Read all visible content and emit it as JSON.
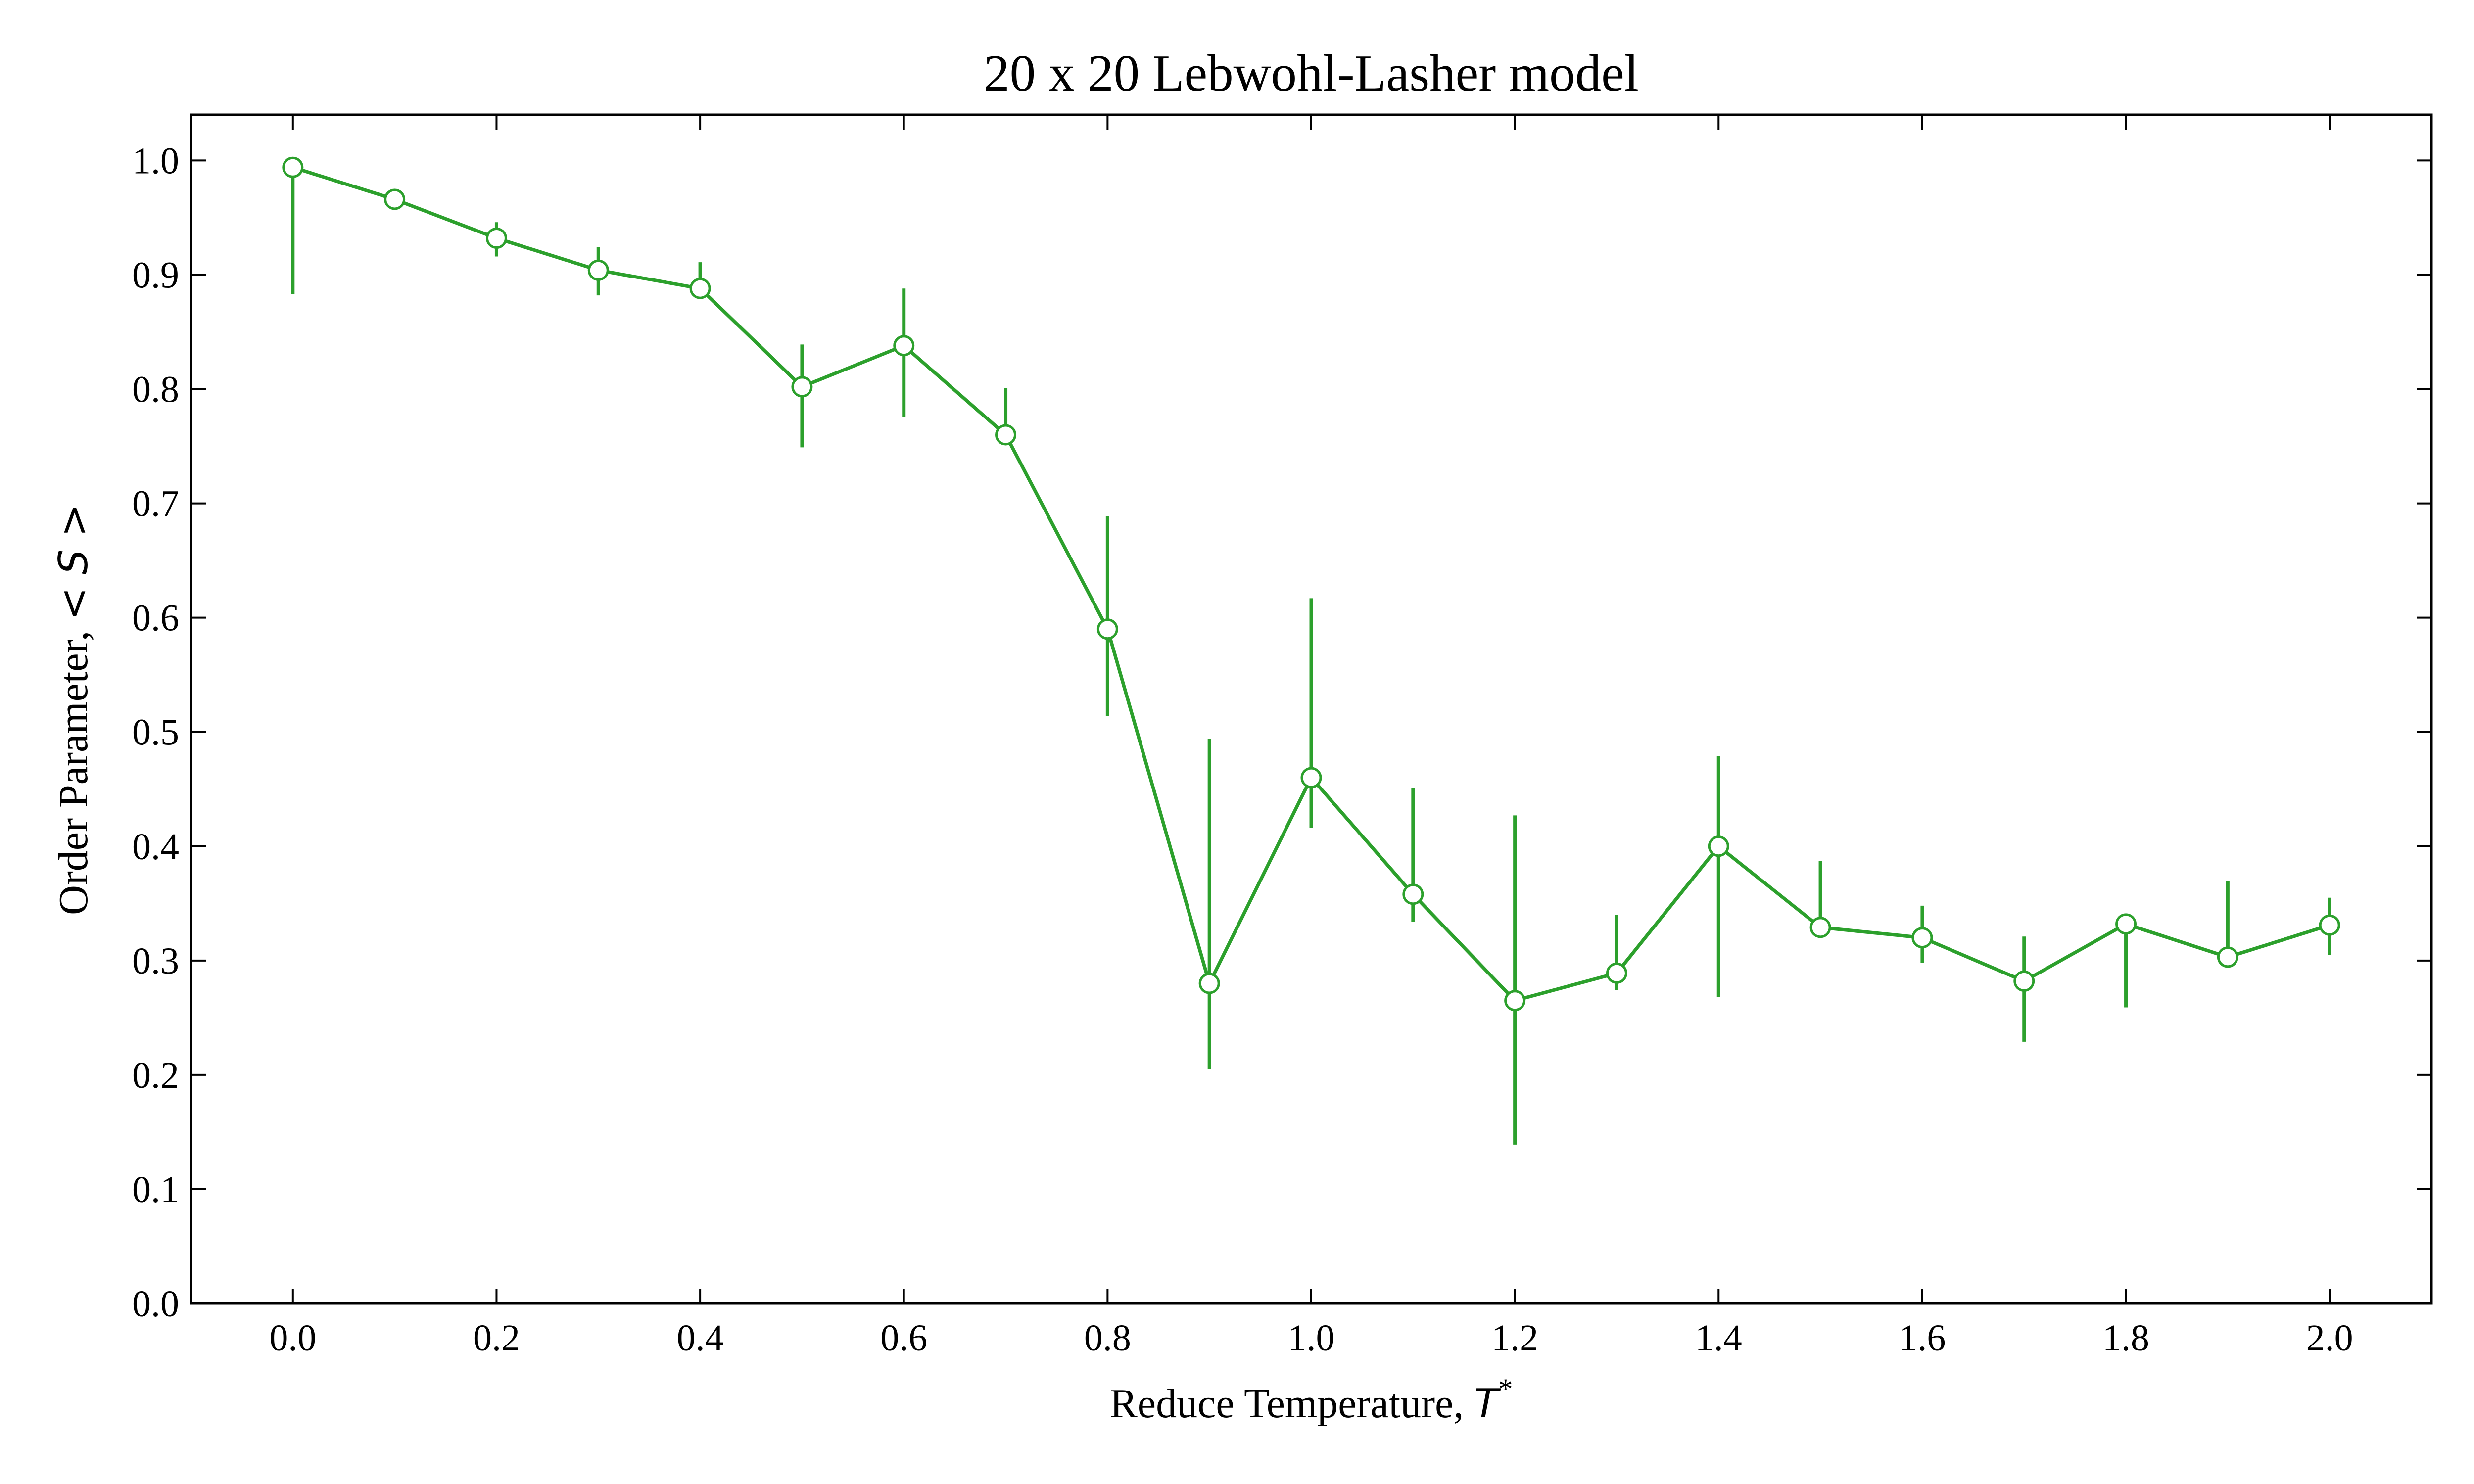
{
  "chart_data": {
    "type": "line",
    "title": "20 x 20 Lebwohl-Lasher model",
    "xlabel_prefix": "Reduce Temperature, ",
    "xlabel_symbol": "T",
    "xlabel_sup": "*",
    "ylabel_prefix": "Order Parameter, ",
    "ylabel_symbol": "< S >",
    "xlim": [
      -0.1,
      2.1
    ],
    "ylim": [
      0.0,
      1.04
    ],
    "xticks": [
      "0.0",
      "0.2",
      "0.4",
      "0.6",
      "0.8",
      "1.0",
      "1.2",
      "1.4",
      "1.6",
      "1.8",
      "2.0"
    ],
    "yticks": [
      "0.0",
      "0.1",
      "0.2",
      "0.3",
      "0.4",
      "0.5",
      "0.6",
      "0.7",
      "0.8",
      "0.9",
      "1.0"
    ],
    "color": "#2ca02c",
    "grid": false,
    "series": [
      {
        "x": [
          0.0,
          0.1,
          0.2,
          0.3,
          0.4,
          0.5,
          0.6,
          0.7,
          0.8,
          0.9,
          1.0,
          1.1,
          1.2,
          1.3,
          1.4,
          1.5,
          1.6,
          1.7,
          1.8,
          1.9,
          2.0
        ],
        "y": [
          0.994,
          0.966,
          0.932,
          0.904,
          0.888,
          0.802,
          0.838,
          0.76,
          0.59,
          0.28,
          0.46,
          0.358,
          0.265,
          0.289,
          0.4,
          0.329,
          0.32,
          0.282,
          0.332,
          0.303,
          0.331
        ],
        "err_low": [
          0.883,
          0.966,
          0.916,
          0.882,
          0.888,
          0.749,
          0.776,
          0.76,
          0.514,
          0.205,
          0.416,
          0.334,
          0.139,
          0.274,
          0.268,
          0.329,
          0.298,
          0.229,
          0.259,
          0.303,
          0.305
        ],
        "err_high": [
          0.994,
          0.966,
          0.946,
          0.924,
          0.911,
          0.839,
          0.888,
          0.801,
          0.689,
          0.494,
          0.617,
          0.451,
          0.427,
          0.34,
          0.479,
          0.387,
          0.348,
          0.321,
          0.332,
          0.37,
          0.355
        ]
      }
    ]
  }
}
